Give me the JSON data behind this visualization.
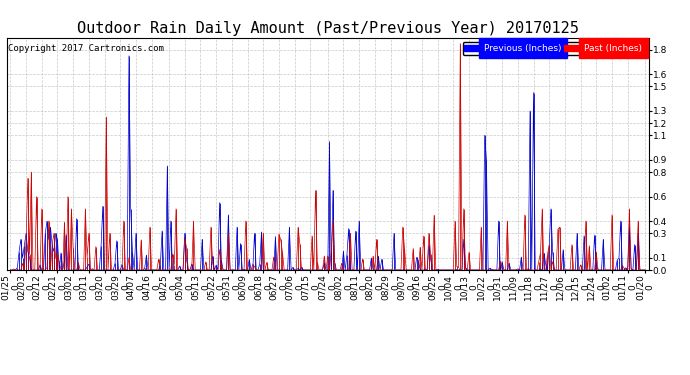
{
  "title": "Outdoor Rain Daily Amount (Past/Previous Year) 20170125",
  "copyright": "Copyright 2017 Cartronics.com",
  "legend_labels": [
    "Previous (Inches)",
    "Past (Inches)"
  ],
  "legend_facecolors": [
    "#0000ff",
    "#ff0000"
  ],
  "legend_textcolors": [
    "#ffffff",
    "#ffffff"
  ],
  "ylim": [
    0.0,
    1.9
  ],
  "yticks": [
    0.0,
    0.1,
    0.3,
    0.4,
    0.6,
    0.8,
    0.9,
    1.1,
    1.2,
    1.3,
    1.5,
    1.6,
    1.8
  ],
  "background_color": "#ffffff",
  "grid_color": "#bbbbbb",
  "line_color_prev": "#0000cc",
  "line_color_past": "#cc0000",
  "title_fontsize": 11,
  "tick_fontsize": 6.5,
  "copyright_fontsize": 6.5,
  "xlabels_line1": [
    "01/25",
    "02/03",
    "02/12",
    "02/21",
    "03/02",
    "03/11",
    "03/20",
    "03/29",
    "04/07",
    "04/16",
    "04/25",
    "05/04",
    "05/13",
    "05/22",
    "05/31",
    "06/09",
    "06/18",
    "06/27",
    "07/06",
    "07/15",
    "07/24",
    "08/02",
    "08/11",
    "08/20",
    "08/29",
    "09/07",
    "09/16",
    "09/25",
    "10/04",
    "10/13",
    "10/22",
    "10/31",
    "11/09",
    "11/18",
    "11/27",
    "12/06",
    "12/15",
    "12/24",
    "01/02",
    "01/11",
    "01/20"
  ],
  "xlabels_line2": [
    "0",
    "0",
    "0",
    "0",
    "0",
    "0",
    "0",
    "0",
    "0",
    "0",
    "0",
    "0",
    "0",
    "0",
    "0",
    "0",
    "0",
    "0",
    "0",
    "0",
    "0",
    "0",
    "0",
    "0",
    "0",
    "0",
    "0",
    "0",
    "0",
    "0",
    "0",
    "0",
    "0",
    "0",
    "0",
    "0",
    "0",
    "0",
    "0",
    "0",
    "0"
  ]
}
